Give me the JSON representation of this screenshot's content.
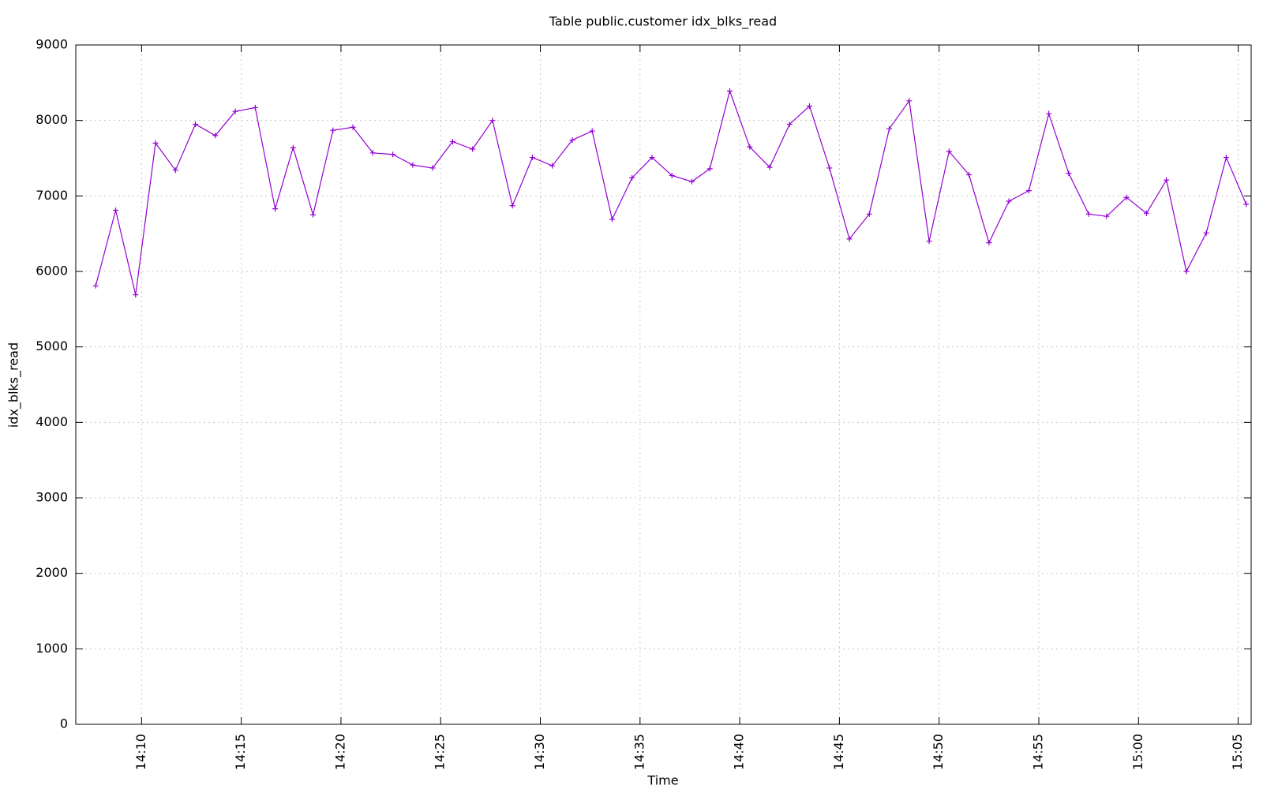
{
  "chart_data": {
    "type": "line",
    "title": "Table public.customer idx_blks_read",
    "x_label": "Time",
    "y_label": "idx_blks_read",
    "x": [
      847.7,
      848.7,
      849.7,
      850.7,
      851.7,
      852.7,
      853.7,
      854.7,
      855.7,
      856.7,
      857.6,
      858.6,
      859.6,
      860.6,
      861.6,
      862.6,
      863.6,
      864.6,
      865.6,
      866.6,
      867.6,
      868.6,
      869.6,
      870.6,
      871.6,
      872.6,
      873.6,
      874.6,
      875.6,
      876.6,
      877.6,
      878.5,
      879.5,
      880.5,
      881.5,
      882.5,
      883.5,
      884.5,
      885.5,
      886.5,
      887.5,
      888.5,
      889.5,
      890.5,
      891.5,
      892.5,
      893.5,
      894.5,
      895.5,
      896.5,
      897.5,
      898.4,
      899.4,
      900.4,
      901.4,
      902.4,
      903.4,
      904.4,
      905.4
    ],
    "series": [
      {
        "name": "idx_blks_read",
        "color": "#9400d3",
        "values": [
          5810,
          6810,
          5690,
          7700,
          7340,
          7950,
          7800,
          8120,
          8170,
          6830,
          7640,
          6750,
          7870,
          7910,
          7570,
          7550,
          7410,
          7370,
          7720,
          7620,
          8000,
          6870,
          7510,
          7400,
          7740,
          7860,
          6690,
          7240,
          7510,
          7270,
          7190,
          7360,
          8390,
          7650,
          7380,
          7950,
          8190,
          7370,
          6430,
          6760,
          7890,
          8260,
          6400,
          7590,
          7280,
          6380,
          6930,
          7070,
          8090,
          7300,
          6760,
          6730,
          6980,
          6770,
          7210,
          6000,
          6510,
          7510,
          6890
        ]
      }
    ],
    "xlim": [
      846.7,
      905.65
    ],
    "xticks": [
      {
        "value": 850,
        "label": "14:10"
      },
      {
        "value": 855,
        "label": "14:15"
      },
      {
        "value": 860,
        "label": "14:20"
      },
      {
        "value": 865,
        "label": "14:25"
      },
      {
        "value": 870,
        "label": "14:30"
      },
      {
        "value": 875,
        "label": "14:35"
      },
      {
        "value": 880,
        "label": "14:40"
      },
      {
        "value": 885,
        "label": "14:45"
      },
      {
        "value": 890,
        "label": "14:50"
      },
      {
        "value": 895,
        "label": "14:55"
      },
      {
        "value": 900,
        "label": "15:00"
      },
      {
        "value": 905,
        "label": "15:05"
      }
    ],
    "ylim": [
      0,
      9000
    ],
    "yticks": [
      0,
      1000,
      2000,
      3000,
      4000,
      5000,
      6000,
      7000,
      8000,
      9000
    ],
    "grid": true
  }
}
